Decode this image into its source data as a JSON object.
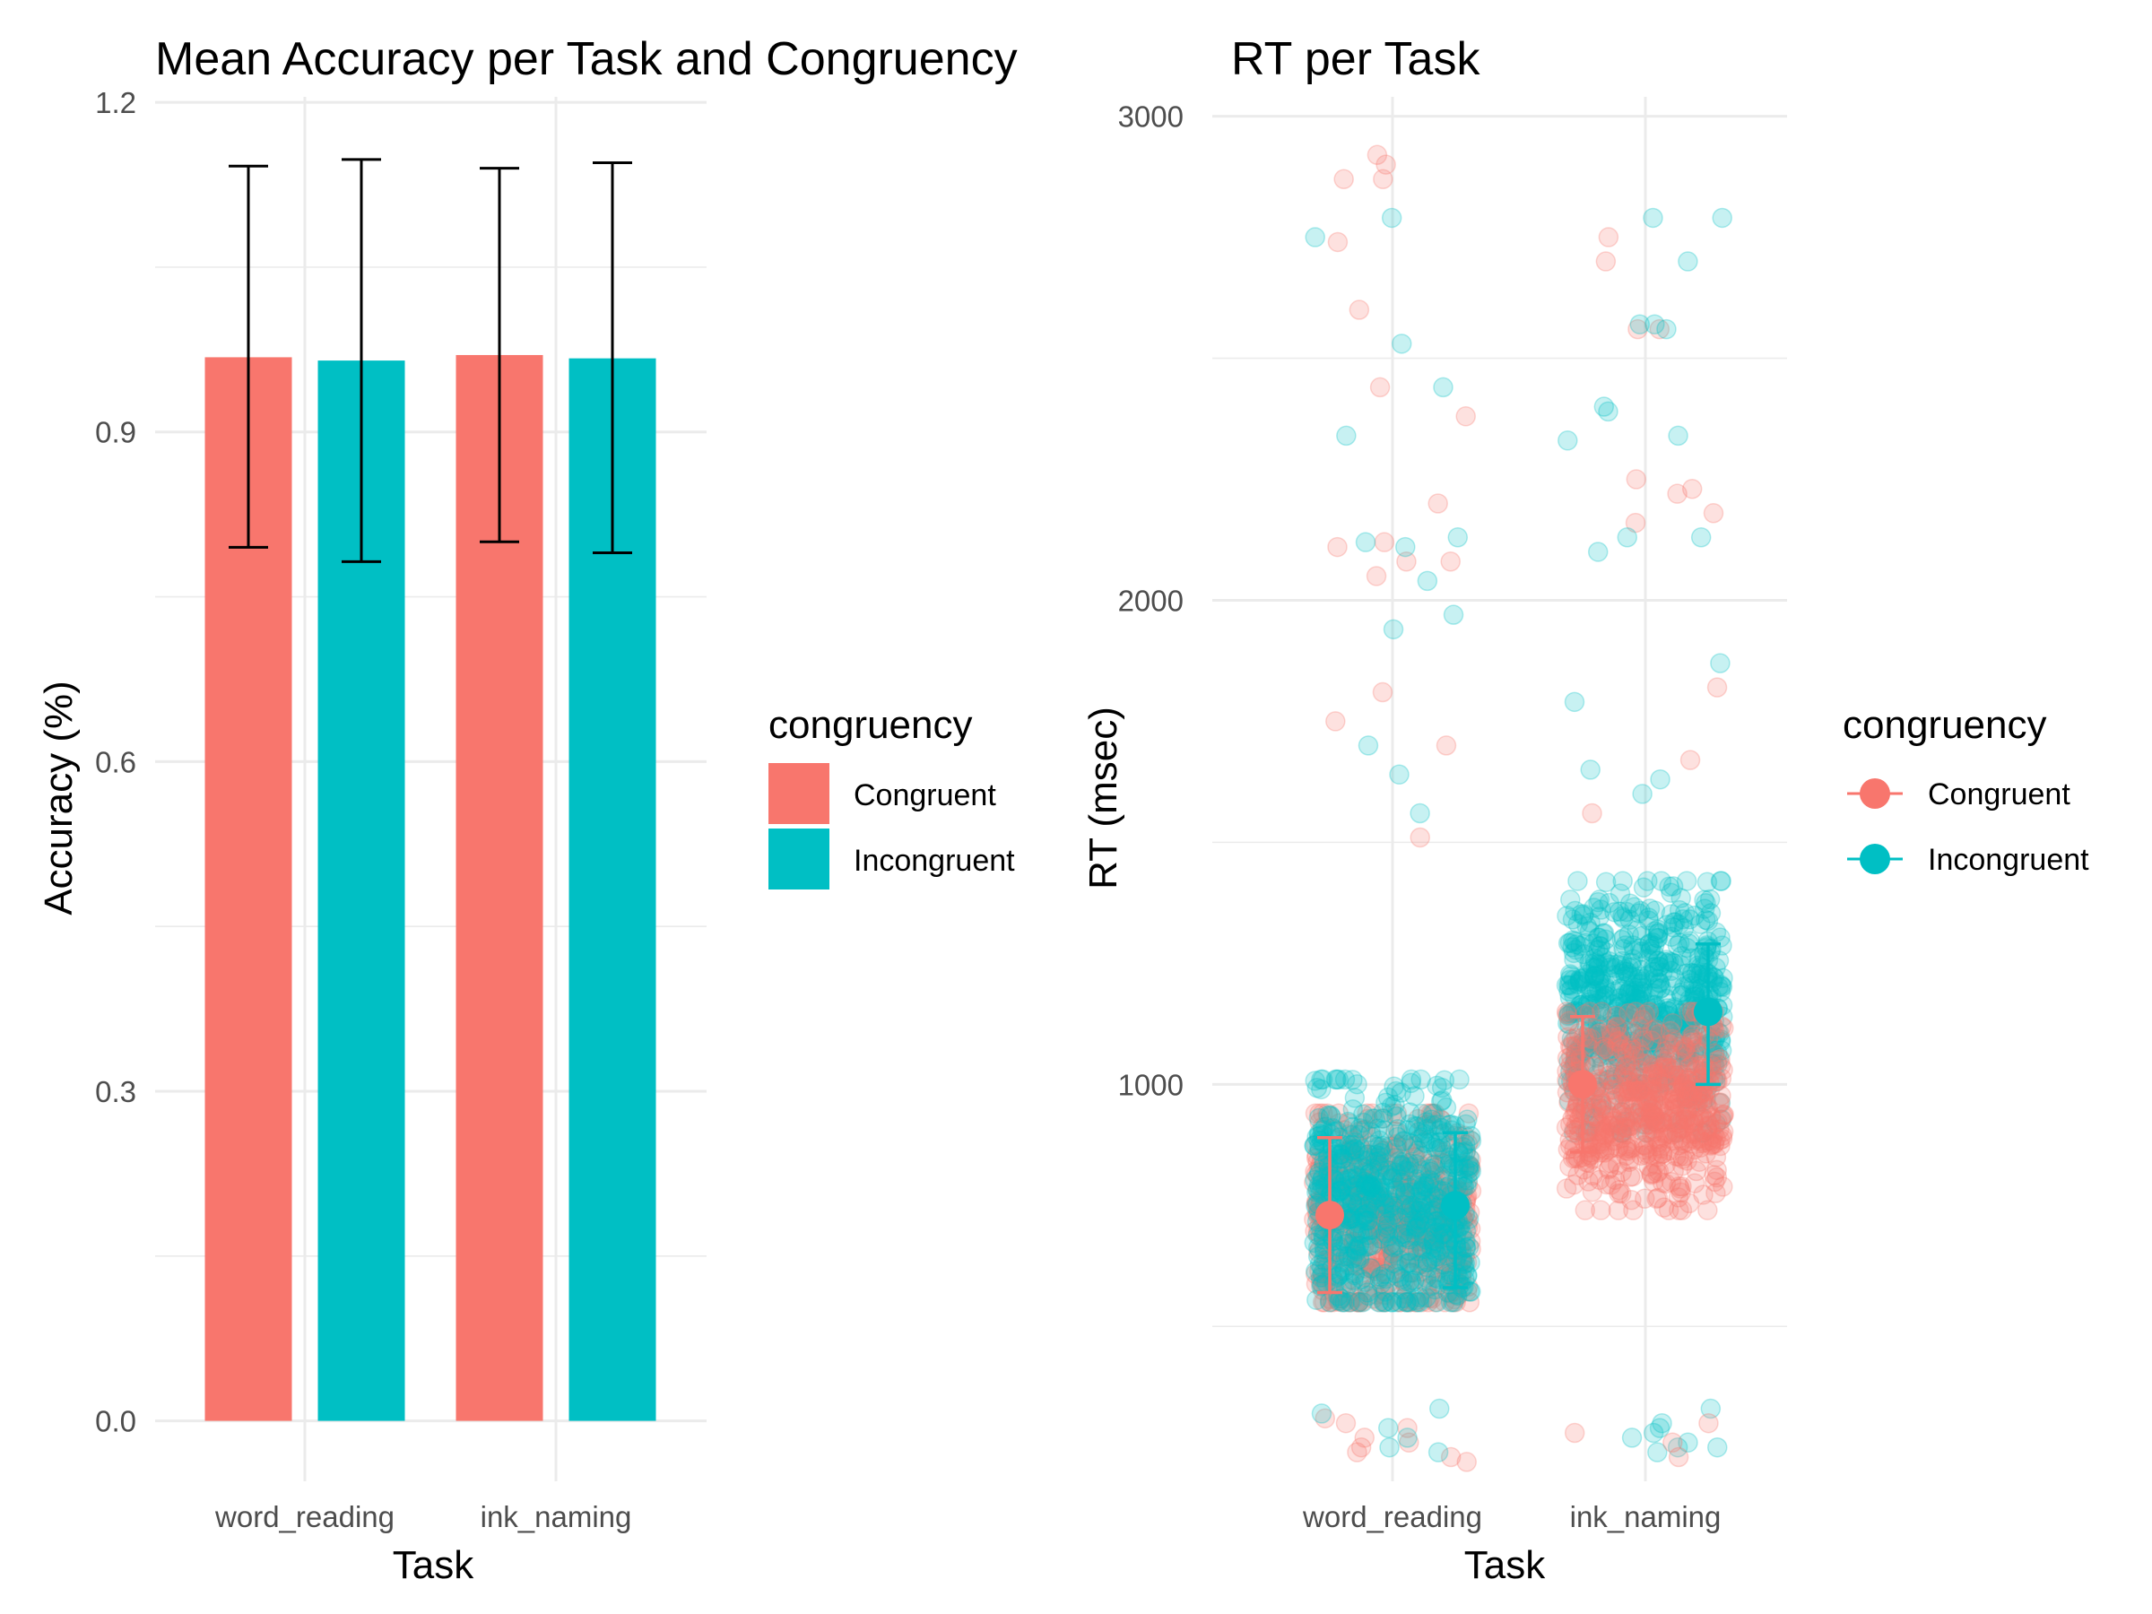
{
  "chart_data": [
    {
      "type": "bar",
      "title": "Mean Accuracy per Task and Congruency",
      "xlabel": "Task",
      "ylabel": "Accuracy (%)",
      "categories": [
        "word_reading",
        "ink_naming"
      ],
      "ylim": [
        -0.055,
        1.205
      ],
      "yticks": [
        "0.0",
        "0.3",
        "0.6",
        "0.9",
        "1.2"
      ],
      "grid": true,
      "legend": {
        "title": "congruency",
        "position": "right"
      },
      "series": [
        {
          "name": "Congruent",
          "color": "#F8766D",
          "values": [
            0.968,
            0.97
          ],
          "error_low": [
            0.795,
            0.8
          ],
          "error_high": [
            1.142,
            1.14
          ]
        },
        {
          "name": "Incongruent",
          "color": "#00BFC4",
          "values": [
            0.965,
            0.967
          ],
          "error_low": [
            0.782,
            0.79
          ],
          "error_high": [
            1.148,
            1.145
          ]
        }
      ]
    },
    {
      "type": "scatter",
      "title": "RT per Task",
      "xlabel": "Task",
      "ylabel": "RT (msec)",
      "categories": [
        "word_reading",
        "ink_naming"
      ],
      "ylim": [
        180,
        3040
      ],
      "yticks": [
        "1000",
        "2000",
        "3000"
      ],
      "grid": true,
      "legend": {
        "title": "congruency",
        "position": "right"
      },
      "series": [
        {
          "name": "Congruent",
          "color": "#F8766D",
          "mean": [
            730,
            1000
          ],
          "error_low": [
            570,
            860
          ],
          "error_high": [
            890,
            1140
          ],
          "outliers": {
            "word_reading": [
              2870,
              2740,
              2900,
              2870,
              2920,
              2600,
              2440,
              2380,
              2200,
              2120,
              2110,
              2080,
              2080,
              2050,
              1810,
              1750,
              1700,
              1510
            ],
            "ink_naming": [
              2750,
              2700,
              2560,
              2560,
              2250,
              2230,
              2220,
              2180,
              2160,
              1820,
              1670,
              1560
            ]
          }
        },
        {
          "name": "Incongruent",
          "color": "#00BFC4",
          "mean": [
            750,
            1150
          ],
          "error_low": [
            580,
            1000
          ],
          "error_high": [
            900,
            1290
          ],
          "outliers": {
            "word_reading": [
              2790,
              2750,
              2530,
              2440,
              2340,
              2130,
              2120,
              2110,
              2040,
              1970,
              1940,
              1700,
              1640,
              1560
            ],
            "ink_naming": [
              2790,
              2790,
              2700,
              2570,
              2560,
              2570,
              2400,
              2390,
              2340,
              2330,
              2130,
              2130,
              2100,
              1870,
              1790,
              1650,
              1630,
              1600
            ]
          }
        }
      ]
    }
  ]
}
